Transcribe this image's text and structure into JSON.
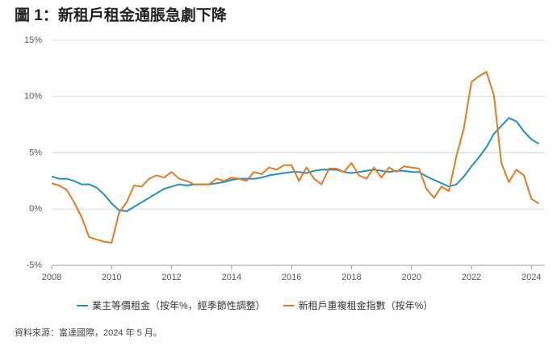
{
  "chart_data": {
    "type": "line",
    "title": "圖 1：新租戶租金通脹急劇下降",
    "source": "資料來源：富達國際，2024 年 5 月。",
    "x": [
      2008.0,
      2008.25,
      2008.5,
      2008.75,
      2009.0,
      2009.25,
      2009.5,
      2009.75,
      2010.0,
      2010.25,
      2010.5,
      2010.75,
      2011.0,
      2011.25,
      2011.5,
      2011.75,
      2012.0,
      2012.25,
      2012.5,
      2012.75,
      2013.0,
      2013.25,
      2013.5,
      2013.75,
      2014.0,
      2014.25,
      2014.5,
      2014.75,
      2015.0,
      2015.25,
      2015.5,
      2015.75,
      2016.0,
      2016.25,
      2016.5,
      2016.75,
      2017.0,
      2017.25,
      2017.5,
      2017.75,
      2018.0,
      2018.25,
      2018.5,
      2018.75,
      2019.0,
      2019.25,
      2019.5,
      2019.75,
      2020.0,
      2020.25,
      2020.5,
      2020.75,
      2021.0,
      2021.25,
      2021.5,
      2021.75,
      2022.0,
      2022.25,
      2022.5,
      2022.75,
      2023.0,
      2023.25,
      2023.5,
      2023.75,
      2024.0,
      2024.25
    ],
    "series": [
      {
        "name": "業主等價租金（按年%，經季節性調整）",
        "color": "#1f8fbf",
        "values": [
          2.9,
          2.7,
          2.7,
          2.5,
          2.2,
          2.2,
          1.9,
          1.3,
          0.5,
          -0.1,
          -0.2,
          0.2,
          0.6,
          1.0,
          1.4,
          1.8,
          2.0,
          2.2,
          2.1,
          2.2,
          2.2,
          2.2,
          2.3,
          2.4,
          2.6,
          2.7,
          2.7,
          2.7,
          2.8,
          3.0,
          3.1,
          3.2,
          3.3,
          3.3,
          3.2,
          3.4,
          3.5,
          3.5,
          3.5,
          3.3,
          3.2,
          3.3,
          3.4,
          3.5,
          3.4,
          3.3,
          3.4,
          3.4,
          3.3,
          3.3,
          2.9,
          2.6,
          2.3,
          2.0,
          2.2,
          2.9,
          3.8,
          4.6,
          5.5,
          6.7,
          7.4,
          8.1,
          7.8,
          6.9,
          6.2,
          5.8
        ]
      },
      {
        "name": "新租戶重複租金指數（按年%）",
        "color": "#e07b1f",
        "values": [
          2.3,
          2.1,
          1.7,
          0.6,
          -0.7,
          -2.5,
          -2.7,
          -2.9,
          -3.0,
          -0.3,
          0.6,
          2.1,
          2.0,
          2.7,
          3.0,
          2.8,
          3.3,
          2.7,
          2.5,
          2.2,
          2.2,
          2.2,
          2.7,
          2.5,
          2.8,
          2.7,
          2.5,
          3.3,
          3.1,
          3.7,
          3.5,
          3.9,
          3.9,
          2.5,
          3.7,
          2.7,
          2.2,
          3.6,
          3.6,
          3.3,
          4.1,
          3.0,
          2.7,
          3.7,
          2.8,
          3.7,
          3.3,
          3.8,
          3.7,
          3.6,
          1.8,
          1.0,
          2.0,
          1.6,
          4.7,
          7.2,
          11.3,
          11.8,
          12.2,
          10.1,
          4.1,
          2.4,
          3.5,
          3.0,
          0.9,
          0.5
        ]
      }
    ],
    "xlim": [
      2008,
      2024.45
    ],
    "xticks": [
      2008,
      2010,
      2012,
      2014,
      2016,
      2018,
      2020,
      2022,
      2024
    ],
    "ylim": [
      -5,
      15
    ],
    "yticks": [
      {
        "value": -5,
        "label": "-5%"
      },
      {
        "value": 0,
        "label": "0%"
      },
      {
        "value": 5,
        "label": "5%"
      },
      {
        "value": 10,
        "label": "10%"
      },
      {
        "value": 15,
        "label": "15%"
      }
    ],
    "grid": true
  }
}
